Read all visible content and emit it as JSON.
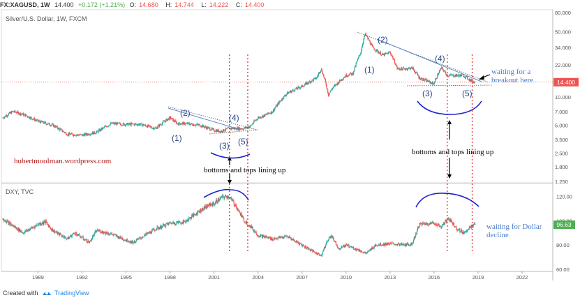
{
  "header": {
    "symbol": "FX:XAGUSD, 1W",
    "last": "14.400",
    "change": "+0.172 (+1.21%)",
    "o_label": "O:",
    "o": "14.680",
    "h_label": "H:",
    "h": "14.744",
    "l_label": "L:",
    "l": "14.222",
    "c_label": "C:",
    "c": "14.400"
  },
  "colors": {
    "up": "#26a69a",
    "down": "#ef5350",
    "pos": "#4caf50",
    "neg": "#ef5350",
    "annot": "#2a4a8a",
    "note_blue": "#4a7cc9",
    "marker_red": "#e03030",
    "arc_blue": "#1a22c8",
    "website": "#b01818",
    "price_label": "#ef5350",
    "tv_blue": "#1e88e5"
  },
  "chart_data": [
    {
      "type": "line",
      "name": "silver",
      "title": "Silver/U.S. Dollar, 1W, FXCM",
      "scale": "log",
      "ylim": [
        1.25,
        80
      ],
      "yticks": [
        "80.000",
        "50.000",
        "34.000",
        "22.000",
        "14.400",
        "10.000",
        "7.000",
        "5.000",
        "3.500",
        "2.500",
        "1.800",
        "1.250"
      ],
      "xlim": [
        1986.6,
        2024.0
      ],
      "series": [
        {
          "name": "XAGUSD",
          "x": [
            1986.6,
            1987.3,
            1988.0,
            1989.0,
            1990.0,
            1991.0,
            1992.0,
            1993.0,
            1994.0,
            1995.0,
            1996.0,
            1997.0,
            1998.0,
            1998.5,
            1999.0,
            2000.0,
            2001.0,
            2001.5,
            2002.0,
            2002.5,
            2003.0,
            2003.5,
            2004.0,
            2004.5,
            2005.0,
            2006.0,
            2006.5,
            2007.0,
            2008.0,
            2008.3,
            2008.8,
            2009.0,
            2010.0,
            2010.5,
            2011.0,
            2011.3,
            2011.8,
            2012.0,
            2012.5,
            2013.0,
            2013.5,
            2014.0,
            2014.5,
            2015.0,
            2015.9,
            2016.0,
            2016.5,
            2016.9,
            2017.5,
            2018.0,
            2018.5,
            2018.8
          ],
          "y": [
            6.0,
            7.0,
            6.5,
            5.5,
            5.0,
            4.0,
            3.9,
            4.2,
            5.2,
            5.1,
            5.1,
            4.6,
            6.0,
            5.2,
            5.2,
            5.0,
            4.4,
            4.3,
            4.6,
            4.6,
            4.6,
            4.9,
            6.0,
            6.4,
            7.0,
            11.0,
            12.0,
            13.0,
            16.0,
            20.0,
            10.5,
            12.0,
            17.0,
            18.0,
            30.0,
            47.0,
            34.0,
            32.0,
            28.0,
            30.0,
            20.0,
            20.0,
            20.5,
            16.0,
            14.0,
            14.0,
            20.5,
            17.0,
            17.0,
            17.0,
            15.0,
            14.4
          ]
        }
      ],
      "last_label": "14.400",
      "annotations": {
        "wave_labels": [
          "(1)",
          "(2)",
          "(3)",
          "(4)",
          "(5)",
          "(1)",
          "(2)",
          "(3)",
          "(4)",
          "(5)"
        ],
        "website": "hubertmoolman.wordpress.com",
        "note_left": "bottoms and tops lining up",
        "note_right": "bottoms and tops lining up",
        "breakout_line1": "waiting for a",
        "breakout_line2": "breakout here"
      }
    },
    {
      "type": "line",
      "name": "dxy",
      "title": "DXY, TVC",
      "scale": "linear",
      "ylim": [
        60,
        130
      ],
      "yticks": [
        "120.00",
        "100.00",
        "80.00",
        "60.00"
      ],
      "xlim": [
        1986.6,
        2024.0
      ],
      "series": [
        {
          "name": "DXY",
          "x": [
            1986.6,
            1987.0,
            1988.0,
            1989.0,
            1989.5,
            1990.0,
            1991.0,
            1991.5,
            1992.0,
            1992.5,
            1993.0,
            1994.0,
            1995.0,
            1995.5,
            1996.0,
            1997.0,
            1998.0,
            1999.0,
            2000.0,
            2000.5,
            2001.0,
            2001.5,
            2002.0,
            2002.5,
            2003.0,
            2003.5,
            2004.0,
            2005.0,
            2006.0,
            2007.0,
            2008.0,
            2008.3,
            2008.8,
            2009.0,
            2009.5,
            2010.0,
            2011.0,
            2011.4,
            2012.0,
            2013.0,
            2014.0,
            2014.5,
            2015.0,
            2016.0,
            2016.5,
            2017.0,
            2017.5,
            2018.0,
            2018.5,
            2018.8
          ],
          "y": [
            102.0,
            98.0,
            90.0,
            97.0,
            99.0,
            92.0,
            85.0,
            90.0,
            86.0,
            82.0,
            92.0,
            89.0,
            84.0,
            82.0,
            86.0,
            93.0,
            98.0,
            99.0,
            108.0,
            112.0,
            114.0,
            119.0,
            120.0,
            112.0,
            101.0,
            95.0,
            88.0,
            85.0,
            87.0,
            80.0,
            73.0,
            71.5,
            85.0,
            88.0,
            77.0,
            80.0,
            75.0,
            73.0,
            80.0,
            81.0,
            80.0,
            81.0,
            97.0,
            98.0,
            95.0,
            102.0,
            94.0,
            90.0,
            95.0,
            96.63
          ]
        }
      ],
      "last_label": "96.63",
      "note_line1": "waiting for Dollar",
      "note_line2": "decline"
    }
  ],
  "x_axis": {
    "ticks": [
      {
        "v": 1989,
        "label": "1989"
      },
      {
        "v": 1992,
        "label": "1992"
      },
      {
        "v": 1995,
        "label": "1995"
      },
      {
        "v": 1998,
        "label": "1998"
      },
      {
        "v": 2001,
        "label": "2001"
      },
      {
        "v": 2004,
        "label": "2004"
      },
      {
        "v": 2007,
        "label": "2007"
      },
      {
        "v": 2010,
        "label": "2010"
      },
      {
        "v": 2013,
        "label": "2013"
      },
      {
        "v": 2016,
        "label": "2016"
      },
      {
        "v": 2019,
        "label": "2019"
      },
      {
        "v": 2022,
        "label": "2022"
      }
    ]
  },
  "marker_years": [
    2002.05,
    2003.3,
    2016.9,
    2018.6
  ],
  "footer": {
    "created": "Created with",
    "tradingview": "TradingView"
  }
}
